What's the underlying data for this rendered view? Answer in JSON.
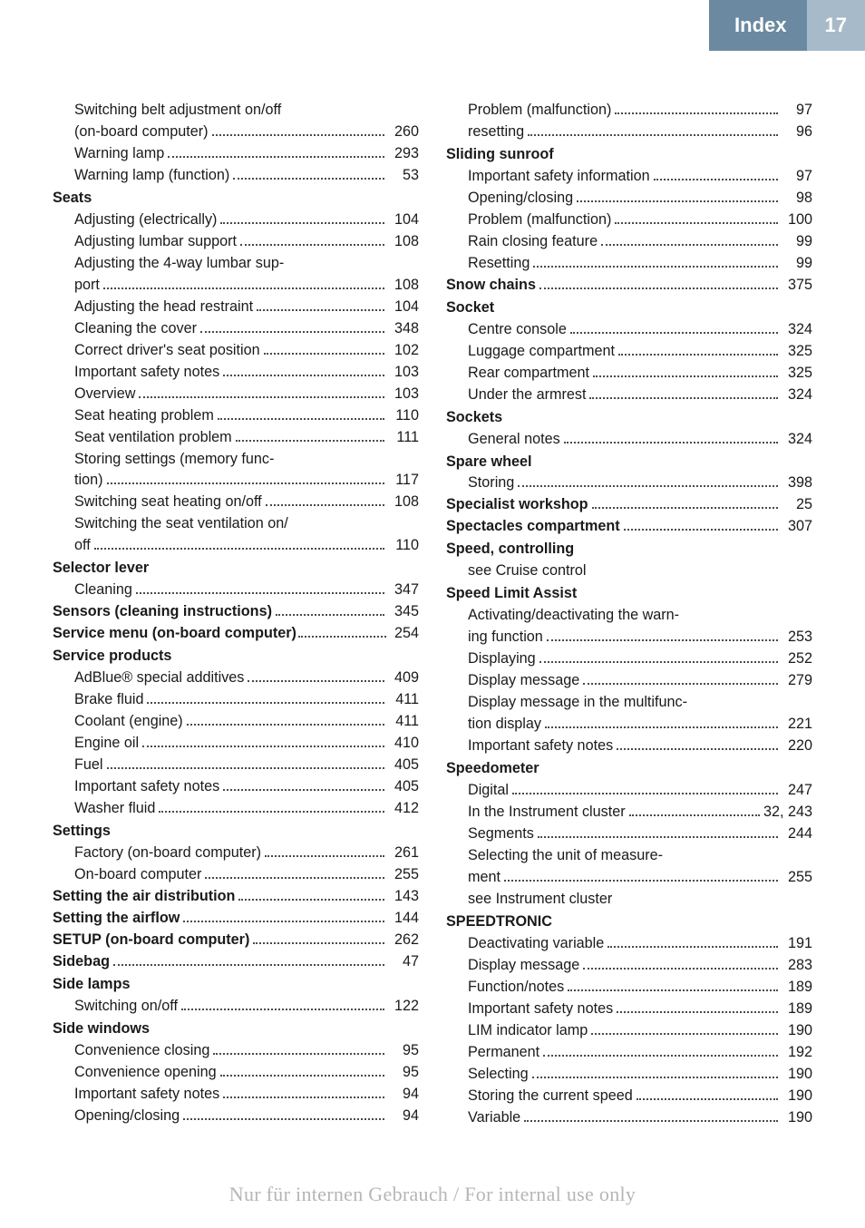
{
  "header": {
    "title": "Index",
    "page": "17"
  },
  "watermark": "Nur für internen Gebrauch / For internal use only",
  "left": [
    {
      "label": "Switching belt adjustment on/off",
      "indent": 1,
      "nopage": true
    },
    {
      "label": "(on-board computer)",
      "indent": 1,
      "cont": true,
      "page": "260"
    },
    {
      "label": "Warning lamp",
      "indent": 1,
      "page": "293"
    },
    {
      "label": "Warning lamp (function)",
      "indent": 1,
      "page": "53"
    },
    {
      "label": "Seats",
      "bold": true,
      "heading": true
    },
    {
      "label": "Adjusting (electrically)",
      "indent": 1,
      "page": "104"
    },
    {
      "label": "Adjusting lumbar support",
      "indent": 1,
      "page": "108"
    },
    {
      "label": "Adjusting the 4-way lumbar sup-",
      "indent": 1,
      "nopage": true
    },
    {
      "label": "port",
      "indent": 1,
      "cont": true,
      "page": "108"
    },
    {
      "label": "Adjusting the head restraint",
      "indent": 1,
      "page": "104"
    },
    {
      "label": "Cleaning the cover",
      "indent": 1,
      "page": "348"
    },
    {
      "label": "Correct driver's seat position",
      "indent": 1,
      "page": "102"
    },
    {
      "label": "Important safety notes",
      "indent": 1,
      "page": "103"
    },
    {
      "label": "Overview",
      "indent": 1,
      "page": "103"
    },
    {
      "label": "Seat heating problem",
      "indent": 1,
      "page": "110"
    },
    {
      "label": "Seat ventilation problem",
      "indent": 1,
      "page": "111"
    },
    {
      "label": "Storing settings (memory func-",
      "indent": 1,
      "nopage": true
    },
    {
      "label": "tion)",
      "indent": 1,
      "cont": true,
      "page": "117"
    },
    {
      "label": "Switching seat heating on/off",
      "indent": 1,
      "page": "108"
    },
    {
      "label": "Switching the seat ventilation on/",
      "indent": 1,
      "nopage": true
    },
    {
      "label": "off",
      "indent": 1,
      "cont": true,
      "page": "110"
    },
    {
      "label": "Selector lever",
      "bold": true,
      "heading": true
    },
    {
      "label": "Cleaning",
      "indent": 1,
      "page": "347"
    },
    {
      "label": "Sensors (cleaning instructions)",
      "bold": true,
      "page": "345"
    },
    {
      "label": "Service menu (on-board computer)",
      "bold": true,
      "page": "254",
      "tightdot": true
    },
    {
      "label": "Service products",
      "bold": true,
      "heading": true
    },
    {
      "label": "AdBlue® special additives",
      "indent": 1,
      "page": "409"
    },
    {
      "label": "Brake fluid",
      "indent": 1,
      "page": "411"
    },
    {
      "label": "Coolant (engine)",
      "indent": 1,
      "page": "411"
    },
    {
      "label": "Engine oil",
      "indent": 1,
      "page": "410"
    },
    {
      "label": "Fuel",
      "indent": 1,
      "page": "405"
    },
    {
      "label": "Important safety notes",
      "indent": 1,
      "page": "405"
    },
    {
      "label": "Washer fluid",
      "indent": 1,
      "page": "412"
    },
    {
      "label": "Settings",
      "bold": true,
      "heading": true
    },
    {
      "label": "Factory (on-board computer)",
      "indent": 1,
      "page": "261"
    },
    {
      "label": "On-board computer",
      "indent": 1,
      "page": "255"
    },
    {
      "label": "Setting the air distribution",
      "bold": true,
      "page": "143"
    },
    {
      "label": "Setting the airflow",
      "bold": true,
      "page": "144"
    },
    {
      "label": "SETUP (on-board computer)",
      "bold": true,
      "page": "262"
    },
    {
      "label": "Sidebag",
      "bold": true,
      "page": "47"
    },
    {
      "label": "Side lamps",
      "bold": true,
      "heading": true
    },
    {
      "label": "Switching on/off",
      "indent": 1,
      "page": "122"
    },
    {
      "label": "Side windows",
      "bold": true,
      "heading": true
    },
    {
      "label": "Convenience closing",
      "indent": 1,
      "page": "95"
    },
    {
      "label": "Convenience opening",
      "indent": 1,
      "page": "95"
    },
    {
      "label": "Important safety notes",
      "indent": 1,
      "page": "94"
    },
    {
      "label": "Opening/closing",
      "indent": 1,
      "page": "94"
    }
  ],
  "right": [
    {
      "label": "Problem (malfunction)",
      "indent": 1,
      "page": "97"
    },
    {
      "label": "resetting",
      "indent": 1,
      "page": "96"
    },
    {
      "label": "Sliding sunroof",
      "bold": true,
      "heading": true
    },
    {
      "label": "Important safety information",
      "indent": 1,
      "page": "97"
    },
    {
      "label": "Opening/closing",
      "indent": 1,
      "page": "98"
    },
    {
      "label": "Problem (malfunction)",
      "indent": 1,
      "page": "100"
    },
    {
      "label": "Rain closing feature",
      "indent": 1,
      "page": "99"
    },
    {
      "label": "Resetting",
      "indent": 1,
      "page": "99"
    },
    {
      "label": "Snow chains",
      "bold": true,
      "page": "375"
    },
    {
      "label": "Socket",
      "bold": true,
      "heading": true
    },
    {
      "label": "Centre console",
      "indent": 1,
      "page": "324"
    },
    {
      "label": "Luggage compartment",
      "indent": 1,
      "page": "325"
    },
    {
      "label": "Rear compartment",
      "indent": 1,
      "page": "325"
    },
    {
      "label": "Under the armrest",
      "indent": 1,
      "page": "324"
    },
    {
      "label": "Sockets",
      "bold": true,
      "heading": true
    },
    {
      "label": "General notes",
      "indent": 1,
      "page": "324"
    },
    {
      "label": "Spare wheel",
      "bold": true,
      "heading": true
    },
    {
      "label": "Storing",
      "indent": 1,
      "page": "398"
    },
    {
      "label": "Specialist workshop",
      "bold": true,
      "page": "25"
    },
    {
      "label": "Spectacles compartment",
      "bold": true,
      "page": "307"
    },
    {
      "label": "Speed, controlling",
      "bold": true,
      "heading": true
    },
    {
      "label": "see Cruise control",
      "indent": 1,
      "see": true
    },
    {
      "label": "Speed Limit Assist",
      "bold": true,
      "heading": true
    },
    {
      "label": "Activating/deactivating the warn-",
      "indent": 1,
      "nopage": true
    },
    {
      "label": "ing function",
      "indent": 1,
      "cont": true,
      "page": "253"
    },
    {
      "label": "Displaying",
      "indent": 1,
      "page": "252"
    },
    {
      "label": "Display message",
      "indent": 1,
      "page": "279"
    },
    {
      "label": "Display message in the multifunc-",
      "indent": 1,
      "nopage": true
    },
    {
      "label": "tion display",
      "indent": 1,
      "cont": true,
      "page": "221"
    },
    {
      "label": "Important safety notes",
      "indent": 1,
      "page": "220"
    },
    {
      "label": "Speedometer",
      "bold": true,
      "heading": true
    },
    {
      "label": "Digital",
      "indent": 1,
      "page": "247"
    },
    {
      "label": "In the Instrument cluster",
      "indent": 1,
      "page": "32, 243"
    },
    {
      "label": "Segments",
      "indent": 1,
      "page": "244"
    },
    {
      "label": "Selecting the unit of measure-",
      "indent": 1,
      "nopage": true
    },
    {
      "label": "ment",
      "indent": 1,
      "cont": true,
      "page": "255"
    },
    {
      "label": "see Instrument cluster",
      "indent": 1,
      "see": true
    },
    {
      "label": "SPEEDTRONIC",
      "bold": true,
      "heading": true
    },
    {
      "label": "Deactivating variable",
      "indent": 1,
      "page": "191"
    },
    {
      "label": "Display message",
      "indent": 1,
      "page": "283"
    },
    {
      "label": "Function/notes",
      "indent": 1,
      "page": "189"
    },
    {
      "label": "Important safety notes",
      "indent": 1,
      "page": "189"
    },
    {
      "label": "LIM indicator lamp",
      "indent": 1,
      "page": "190"
    },
    {
      "label": "Permanent",
      "indent": 1,
      "page": "192"
    },
    {
      "label": "Selecting",
      "indent": 1,
      "page": "190"
    },
    {
      "label": "Storing the current speed",
      "indent": 1,
      "page": "190"
    },
    {
      "label": "Variable",
      "indent": 1,
      "page": "190"
    }
  ]
}
